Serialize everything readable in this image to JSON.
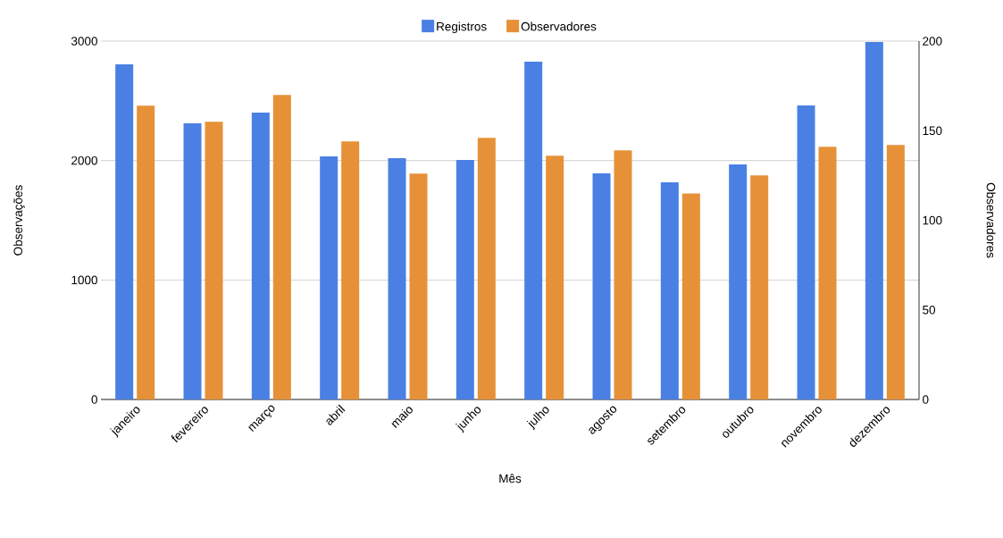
{
  "chart_data": {
    "type": "bar",
    "xlabel": "Mês",
    "ylabel": "Observações",
    "y2label": "Observadores",
    "categories": [
      "janeiro",
      "fevereiro",
      "março",
      "abril",
      "maio",
      "junho",
      "julho",
      "agosto",
      "setembro",
      "outubro",
      "novembro",
      "dezembro"
    ],
    "series": [
      {
        "name": "Registros",
        "color": "#4a80e4",
        "values": [
          2805,
          2312,
          2401,
          2035,
          2020,
          2005,
          2828,
          1893,
          1818,
          1968,
          2461,
          2993
        ]
      },
      {
        "name": "Observadores",
        "color": "#e69138",
        "axis": "y2",
        "values": [
          164,
          155,
          170,
          144,
          126,
          146,
          136,
          139,
          115,
          125,
          141,
          142
        ]
      }
    ],
    "ylim": [
      0,
      3000
    ],
    "yticks": [
      0,
      1000,
      2000,
      3000
    ],
    "y2lim": [
      0,
      200
    ],
    "y2ticks": [
      0,
      50,
      100,
      150,
      200
    ],
    "grid": "y",
    "legend": "top"
  }
}
